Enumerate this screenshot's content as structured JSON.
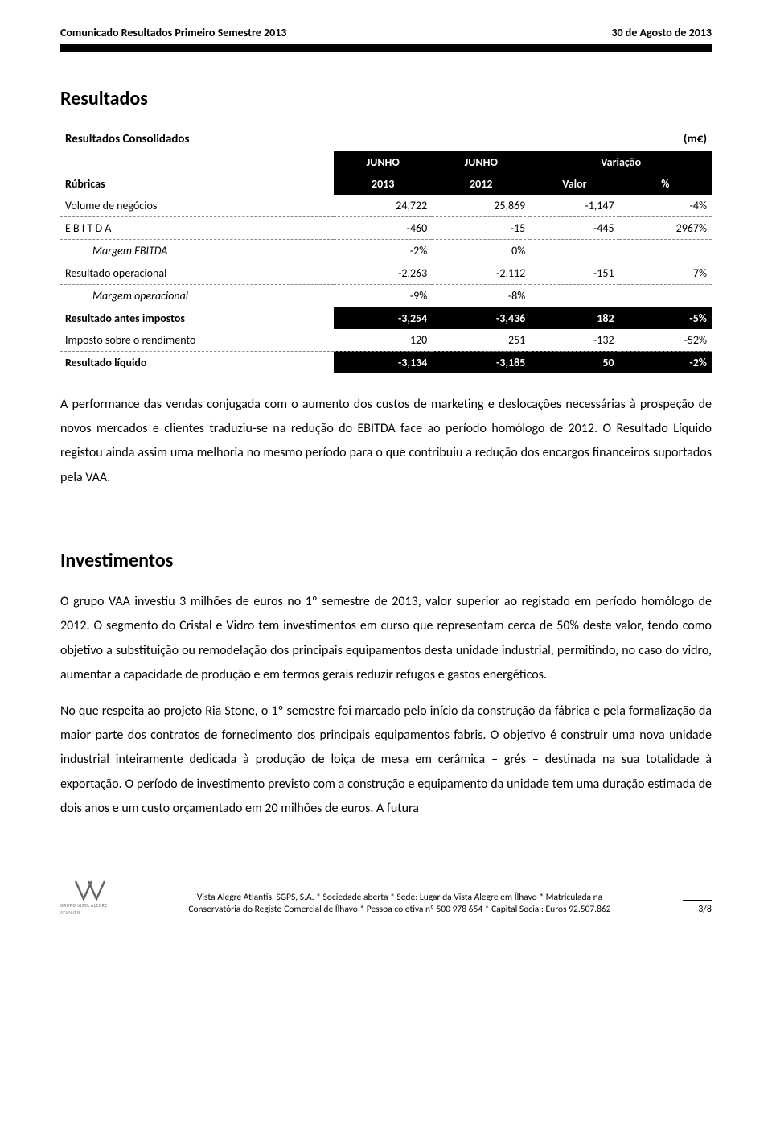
{
  "header": {
    "left": "Comunicado Resultados Primeiro Semestre 2013",
    "right": "30 de Agosto de 2013"
  },
  "section1_title": "Resultados",
  "table": {
    "caption_left": "Resultados Consolidados",
    "caption_right": "(m€)",
    "hdr1_c2": "JUNHO",
    "hdr1_c3": "JUNHO",
    "hdr1_c45": "Variação",
    "hdr2_c1": "Rúbricas",
    "hdr2_c2": "2013",
    "hdr2_c3": "2012",
    "hdr2_c4": "Valor",
    "hdr2_c5": "%",
    "rows": [
      {
        "label": "Volume de negócios",
        "c2": "24,722",
        "c3": "25,869",
        "c4": "-1,147",
        "c5": "-4%",
        "style": "rule"
      },
      {
        "label": "E B I T D A",
        "c2": "-460",
        "c3": "-15",
        "c4": "-445",
        "c5": "2967%",
        "style": "rule"
      },
      {
        "label": "Margem EBITDA",
        "c2": "-2%",
        "c3": "0%",
        "c4": "",
        "c5": "",
        "style": "italic rule"
      },
      {
        "label": "Resultado operacional",
        "c2": "-2,263",
        "c3": "-2,112",
        "c4": "-151",
        "c5": "7%",
        "style": "rule"
      },
      {
        "label": "Margem operacional",
        "c2": "-9%",
        "c3": "-8%",
        "c4": "",
        "c5": "",
        "style": "italic rule"
      },
      {
        "label": "Resultado antes impostos",
        "c2": "-3,254",
        "c3": "-3,436",
        "c4": "182",
        "c5": "-5%",
        "style": "solid-row"
      },
      {
        "label": "Imposto sobre o rendimento",
        "c2": "120",
        "c3": "251",
        "c4": "-132",
        "c5": "-52%",
        "style": "rule"
      },
      {
        "label": "Resultado líquido",
        "c2": "-3,134",
        "c3": "-3,185",
        "c4": "50",
        "c5": "-2%",
        "style": "solid-row"
      }
    ]
  },
  "para1": "A performance das vendas conjugada com o aumento dos custos de marketing e deslocações necessárias à prospeção de novos mercados e clientes traduziu-se na redução do EBITDA face ao período homólogo de 2012. O Resultado Líquido registou ainda assim uma melhoria no mesmo período para o que contribuiu a redução dos encargos financeiros suportados pela VAA.",
  "section2_title": "Investimentos",
  "para2": "O grupo VAA investiu 3 milhões de euros no 1º semestre de 2013, valor superior ao registado em período homólogo de 2012. O segmento do Cristal e Vidro tem investimentos em curso que representam cerca de 50% deste valor, tendo como objetivo a substituição ou remodelação dos principais equipamentos desta unidade industrial, permitindo, no caso do vidro, aumentar a capacidade de produção e em termos gerais reduzir refugos e gastos energéticos.",
  "para3": "No que respeita ao projeto Ria Stone, o 1º semestre foi marcado pelo início da construção da fábrica e pela formalização da maior parte dos contratos de fornecimento dos principais equipamentos fabris. O objetivo é construir uma nova unidade industrial inteiramente dedicada à produção de loiça de mesa em cerâmica – grés – destinada na sua totalidade à exportação. O período de investimento previsto com a construção e equipamento da unidade tem uma duração estimada de dois anos e um custo orçamentado em 20 milhões de euros. A futura",
  "footer": {
    "line1": "Vista Alegre Atlantis, SGPS, S.A. * Sociedade aberta * Sede: Lugar da Vista Alegre em Ílhavo * Matriculada na",
    "line2": "Conservatória do Registo Comercial de Ílhavo * Pessoa coletiva nº 500 978 654 * Capital Social: Euros 92.507.862",
    "page": "3/8",
    "logo_caption": "GRUPO VISTA ALEGRE ATLANTIS"
  }
}
